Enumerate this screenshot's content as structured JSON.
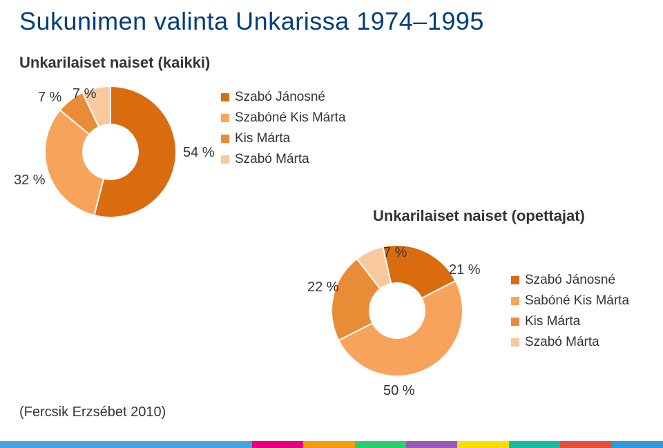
{
  "title": "Sukunimen valinta Unkarissa 1974–1995",
  "source": "(Fercsik Erzsébet 2010)",
  "chart1": {
    "type": "donut",
    "title": "Unkarilaiset naiset (kaikki)",
    "hole_ratio": 0.42,
    "background_color": "#ffffff",
    "slices": [
      {
        "label": "Szabó Jánosné",
        "value": 54,
        "display": "54 %",
        "color": "#d86c0f"
      },
      {
        "label": "Szabóné Kis Márta",
        "value": 32,
        "display": "32 %",
        "color": "#f7a35c"
      },
      {
        "label": "Kis Márta",
        "value": 7,
        "display": "7 %",
        "color": "#e88c36"
      },
      {
        "label": "Szabó Márta",
        "value": 7,
        "display": "7 %",
        "color": "#f9c99d"
      }
    ],
    "legend": [
      {
        "text": "Szabó Jánosné",
        "swatch": "#d86c0f"
      },
      {
        "text": "Szabóné Kis Márta",
        "swatch": "#f7a35c"
      },
      {
        "text": "Kis Márta",
        "swatch": "#e88c36"
      },
      {
        "text": "Szabó Márta",
        "swatch": "#f9c99d"
      }
    ],
    "label_fontsize": 20,
    "legend_fontsize": 19
  },
  "chart2": {
    "type": "donut",
    "title": "Unkarilaiset naiset (opettajat)",
    "hole_ratio": 0.42,
    "background_color": "#ffffff",
    "slices": [
      {
        "label": "Szabó Jánosné",
        "value": 21,
        "display": "21 %",
        "color": "#d86c0f"
      },
      {
        "label": "Sabóné Kis Márta",
        "value": 50,
        "display": "50 %",
        "color": "#f7a35c"
      },
      {
        "label": "Kis Márta",
        "value": 22,
        "display": "22 %",
        "color": "#e88c36"
      },
      {
        "label": "Szabó Márta",
        "value": 7,
        "display": "7 %",
        "color": "#f9c99d"
      }
    ],
    "legend": [
      {
        "text": "Szabó Jánosné",
        "swatch": "#d86c0f"
      },
      {
        "text": "Sabóné Kis Márta",
        "swatch": "#f7a35c"
      },
      {
        "text": "Kis Márta",
        "swatch": "#e88c36"
      },
      {
        "text": "Szabó Márta",
        "swatch": "#f9c99d"
      }
    ],
    "label_fontsize": 20,
    "legend_fontsize": 19
  },
  "footer_colors": [
    "#4aa3df",
    "#e6007e",
    "#f39c12",
    "#2ecc71",
    "#9b59b6",
    "#ffdd00",
    "#1abc9c",
    "#e74c3c",
    "#3498db"
  ]
}
